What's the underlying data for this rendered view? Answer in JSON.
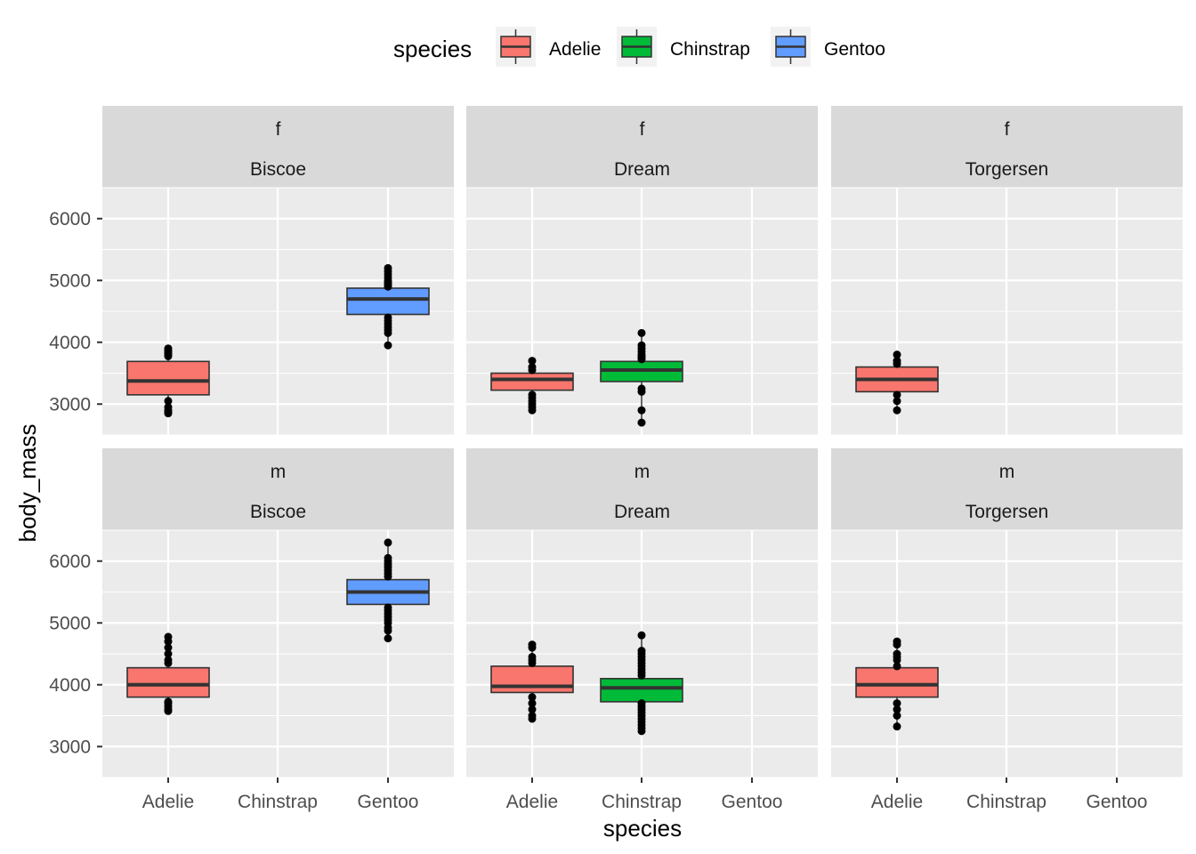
{
  "chart_data": {
    "type": "boxplot",
    "layout": "facet_grid",
    "facet_rows": [
      "f",
      "m"
    ],
    "facet_cols": [
      "Biscoe",
      "Dream",
      "Torgersen"
    ],
    "categories": [
      "Adelie",
      "Chinstrap",
      "Gentoo"
    ],
    "xlabel": "species",
    "ylabel": "body_mass",
    "ylim": [
      2500,
      6500
    ],
    "yticks": [
      3000,
      4000,
      5000,
      6000
    ],
    "legend": {
      "title": "species",
      "position": "top",
      "entries": [
        {
          "name": "Adelie",
          "color": "#F8766D"
        },
        {
          "name": "Chinstrap",
          "color": "#00BA38"
        },
        {
          "name": "Gentoo",
          "color": "#619CFF"
        }
      ]
    },
    "colors": {
      "Adelie": "#F8766D",
      "Chinstrap": "#00BA38",
      "Gentoo": "#619CFF",
      "panel_bg": "#EBEBEB",
      "strip_bg": "#D9D9D9",
      "grid": "#FFFFFF"
    },
    "panels": [
      {
        "row": "f",
        "col": "Biscoe",
        "boxes": [
          {
            "species": "Adelie",
            "q1": 3150,
            "median": 3375,
            "q3": 3690,
            "outliers": [
              3775,
              3800,
              3825,
              3850,
              3875,
              3900,
              3050,
              2950,
              2900,
              2875,
              2850
            ]
          },
          {
            "species": "Gentoo",
            "q1": 4450,
            "median": 4700,
            "q3": 4875,
            "outliers": [
              4900,
              4925,
              4950,
              4975,
              5000,
              5050,
              5100,
              5150,
              5200,
              4400,
              4350,
              4300,
              4250,
              4200,
              4150,
              3950
            ]
          }
        ]
      },
      {
        "row": "f",
        "col": "Dream",
        "boxes": [
          {
            "species": "Adelie",
            "q1": 3225,
            "median": 3400,
            "q3": 3500,
            "outliers": [
              3550,
              3600,
              3700,
              3150,
              3100,
              3050,
              3000,
              2950,
              2900
            ]
          },
          {
            "species": "Chinstrap",
            "q1": 3365,
            "median": 3550,
            "q3": 3690,
            "outliers": [
              3725,
              3750,
              3775,
              3800,
              3850,
              3900,
              3950,
              4150,
              3250,
              3200,
              2900,
              2700
            ]
          }
        ]
      },
      {
        "row": "f",
        "col": "Torgersen",
        "boxes": [
          {
            "species": "Adelie",
            "q1": 3200,
            "median": 3400,
            "q3": 3600,
            "outliers": [
              3650,
              3700,
              3800,
              3150,
              3050,
              2900
            ]
          }
        ]
      },
      {
        "row": "m",
        "col": "Biscoe",
        "boxes": [
          {
            "species": "Adelie",
            "q1": 3800,
            "median": 4000,
            "q3": 4275,
            "outliers": [
              4350,
              4400,
              4500,
              4600,
              4700,
              4775,
              3725,
              3700,
              3650,
              3600,
              3575
            ]
          },
          {
            "species": "Gentoo",
            "q1": 5300,
            "median": 5500,
            "q3": 5700,
            "outliers": [
              5750,
              5800,
              5850,
              5900,
              5950,
              6000,
              6050,
              6300,
              5250,
              5200,
              5150,
              5100,
              5050,
              5000,
              4925,
              4875,
              4750
            ]
          }
        ]
      },
      {
        "row": "m",
        "col": "Dream",
        "boxes": [
          {
            "species": "Adelie",
            "q1": 3875,
            "median": 3975,
            "q3": 4300,
            "outliers": [
              4350,
              4400,
              4450,
              4600,
              4650,
              3800,
              3700,
              3600,
              3500,
              3450
            ]
          },
          {
            "species": "Chinstrap",
            "q1": 3725,
            "median": 3950,
            "q3": 4100,
            "outliers": [
              4150,
              4200,
              4250,
              4300,
              4350,
              4400,
              4450,
              4500,
              4550,
              4800,
              3700,
              3650,
              3600,
              3550,
              3500,
              3450,
              3400,
              3350,
              3300,
              3250
            ]
          }
        ]
      },
      {
        "row": "m",
        "col": "Torgersen",
        "boxes": [
          {
            "species": "Adelie",
            "q1": 3800,
            "median": 4000,
            "q3": 4275,
            "outliers": [
              4300,
              4400,
              4450,
              4500,
              4650,
              4700,
              3700,
              3600,
              3500,
              3325
            ]
          }
        ]
      }
    ]
  }
}
